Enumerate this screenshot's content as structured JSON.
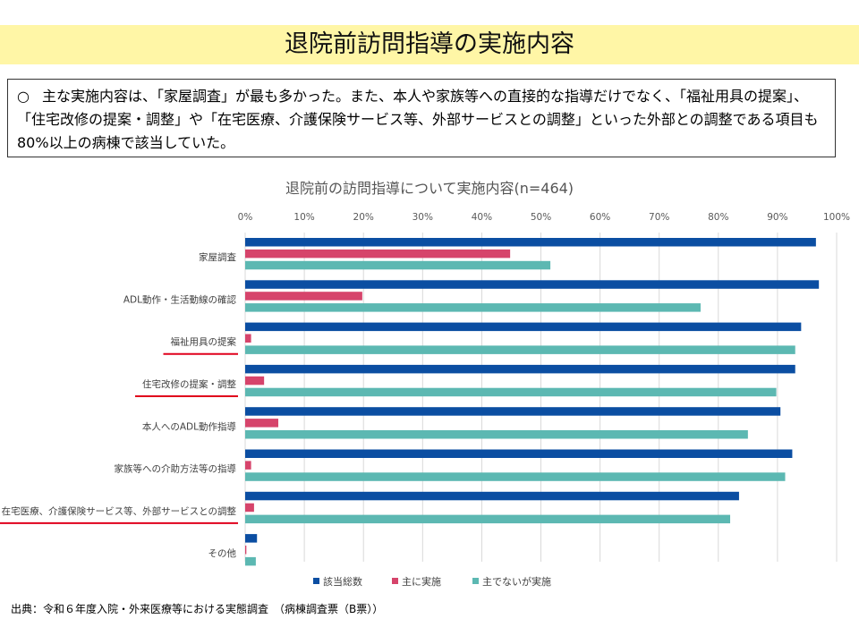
{
  "page": {
    "title": "退院前訪問指導の実施内容",
    "summary_bullet": "○",
    "summary_text": "主な実施内容は、「家屋調査」が最も多かった。また、本人や家族等への直接的な指導だけでなく、「福祉用具の提案」、「住宅改修の提案・調整」や「在宅医療、介護保険サービス等、外部サービスとの調整」といった外部との調整である項目も80%以上の病棟で該当していた。",
    "source": "出典：令和６年度入院・外来医療等における実態調査　（病棟調査票（B票））"
  },
  "chart_data": {
    "type": "bar",
    "orientation": "horizontal",
    "title": "退院前の訪問指導について実施内容(n=464)",
    "xlim": [
      0,
      100
    ],
    "xticks": [
      "0%",
      "10%",
      "20%",
      "30%",
      "40%",
      "50%",
      "60%",
      "70%",
      "80%",
      "90%",
      "100%"
    ],
    "grid": true,
    "legend": "bottom",
    "categories": [
      "家屋調査",
      "ADL動作・生活動線の確認",
      "福祉用具の提案",
      "住宅改修の提案・調整",
      "本人へのADL動作指導",
      "家族等への介助方法等の指導",
      "在宅医療、介護保険サービス等、外部サービスとの調整",
      "その他"
    ],
    "underlined_categories": [
      2,
      3,
      6
    ],
    "underline_color": "#e0001b",
    "series": [
      {
        "name": "該当総数",
        "color": "#0b4ea2",
        "values": [
          96.5,
          97,
          94,
          93,
          90.5,
          92.5,
          83.5,
          2
        ]
      },
      {
        "name": "主に実施",
        "color": "#d6446b",
        "values": [
          44.8,
          19.8,
          1,
          3.2,
          5.6,
          1,
          1.5,
          0.2
        ]
      },
      {
        "name": "主でないが実施",
        "color": "#5cb8b2",
        "values": [
          51.6,
          77,
          93,
          89.8,
          85,
          91.3,
          82,
          1.8
        ]
      }
    ]
  }
}
